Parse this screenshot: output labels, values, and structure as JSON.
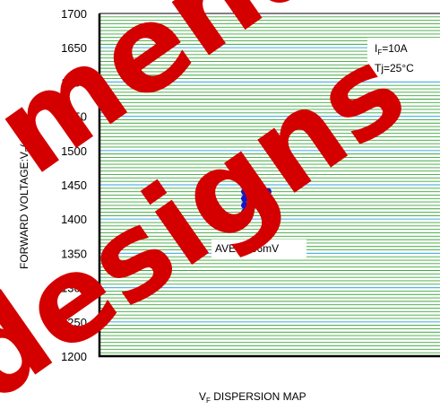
{
  "chart_data": {
    "type": "scatter",
    "title": "V",
    "title_sub": "F",
    "title_rest": " DISPERSION MAP",
    "ylabel": "FORWARD VOLTAGE:V",
    "ylabel_sub": "F",
    "ylabel_rest": "(mV)",
    "ylim": [
      1200,
      1700
    ],
    "y_ticks": [
      "1200",
      "1250",
      "1300",
      "1350",
      "1400",
      "1450",
      "1500",
      "1550",
      "1600",
      "1650",
      "1700"
    ],
    "grid": true,
    "conditions": [
      {
        "main": "I",
        "sub": "F",
        "rest": "=10A"
      },
      {
        "main": "Tj=25°C",
        "sub": "",
        "rest": ""
      }
    ],
    "annotation": "AVE:1436mV",
    "points": [
      {
        "col": 0,
        "y": 1460
      },
      {
        "col": 0,
        "y": 1450
      },
      {
        "col": 0,
        "y": 1440
      },
      {
        "col": 0,
        "y": 1430
      },
      {
        "col": 0,
        "y": 1420
      },
      {
        "col": 0,
        "y": 1410
      },
      {
        "col": 1,
        "y": 1460
      },
      {
        "col": 1,
        "y": 1450
      },
      {
        "col": 1,
        "y": 1440
      },
      {
        "col": 1,
        "y": 1430
      },
      {
        "col": 1,
        "y": 1420
      },
      {
        "col": 2,
        "y": 1440
      },
      {
        "col": 3,
        "y": 1440
      }
    ],
    "point_color": "#1616c8",
    "grid_colors": [
      "#3aa83a",
      "#56b4e8"
    ]
  },
  "watermark": {
    "line1": "mena",
    "line2": "designs",
    "color": "#d40000"
  }
}
